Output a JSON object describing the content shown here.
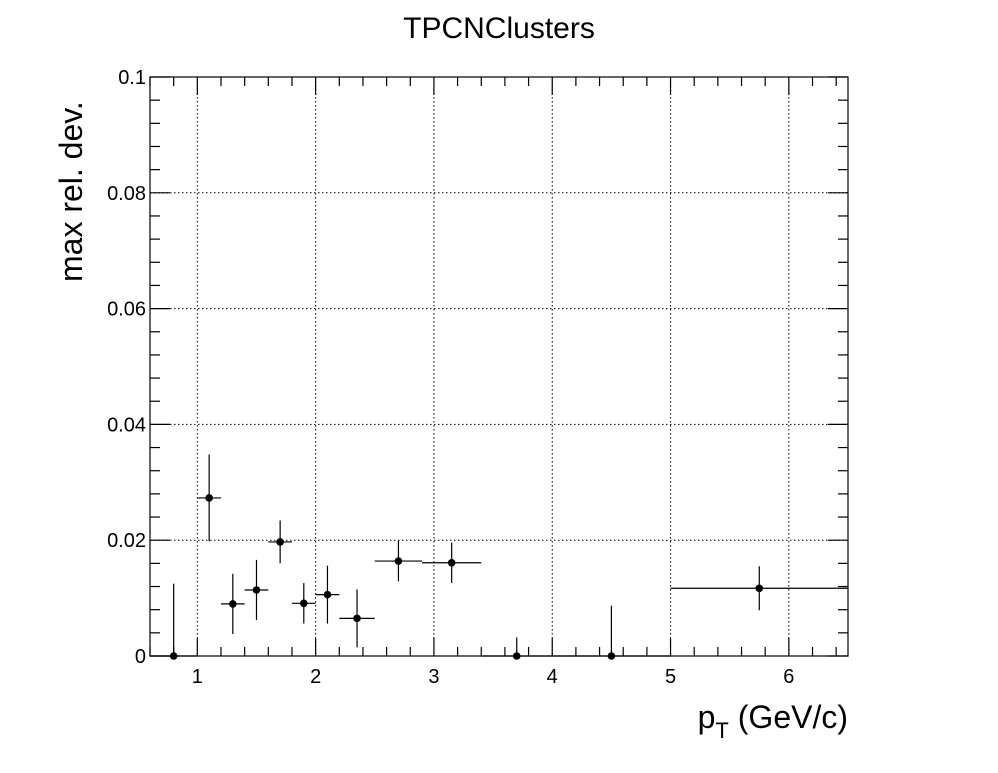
{
  "chart_data": {
    "type": "scatter",
    "title": "TPCNClusters",
    "xlabel": {
      "main": "p",
      "sub": "T",
      "rest": " (GeV/c)"
    },
    "ylabel": "max rel. dev.",
    "xlim": [
      0.6,
      6.5
    ],
    "ylim": [
      0,
      0.1
    ],
    "x_ticks": [
      1,
      2,
      3,
      4,
      5,
      6
    ],
    "y_ticks": [
      0,
      0.02,
      0.04,
      0.06,
      0.08,
      0.1
    ],
    "y_tick_labels": [
      "0",
      "0.02",
      "0.04",
      "0.06",
      "0.08",
      "0.1"
    ],
    "grid": true,
    "points": [
      {
        "x": 0.8,
        "xerr": 0.2,
        "y": 0.0,
        "yerr": 0.0125
      },
      {
        "x": 1.1,
        "xerr": 0.1,
        "y": 0.0273,
        "yerr": 0.0075
      },
      {
        "x": 1.3,
        "xerr": 0.1,
        "y": 0.009,
        "yerr": 0.0052
      },
      {
        "x": 1.5,
        "xerr": 0.1,
        "y": 0.0114,
        "yerr": 0.0052
      },
      {
        "x": 1.7,
        "xerr": 0.1,
        "y": 0.0197,
        "yerr": 0.0037
      },
      {
        "x": 1.9,
        "xerr": 0.1,
        "y": 0.0091,
        "yerr": 0.0035
      },
      {
        "x": 2.1,
        "xerr": 0.1,
        "y": 0.0106,
        "yerr": 0.005
      },
      {
        "x": 2.35,
        "xerr": 0.15,
        "y": 0.0065,
        "yerr": 0.005
      },
      {
        "x": 2.7,
        "xerr": 0.2,
        "y": 0.0164,
        "yerr": 0.0035
      },
      {
        "x": 3.15,
        "xerr": 0.25,
        "y": 0.0161,
        "yerr": 0.0035
      },
      {
        "x": 3.7,
        "xerr": 0.3,
        "y": 0.0,
        "yerr": 0.0032
      },
      {
        "x": 4.5,
        "xerr": 0.5,
        "y": 0.0,
        "yerr": 0.0087
      },
      {
        "x": 5.75,
        "xerr": 0.75,
        "y": 0.0117,
        "yerr": 0.0038
      }
    ]
  }
}
